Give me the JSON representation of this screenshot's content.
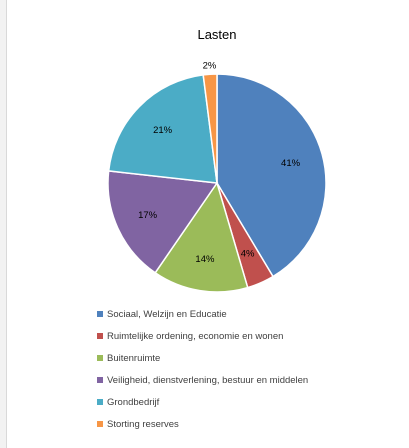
{
  "chart_data": {
    "type": "pie",
    "title": "Lasten",
    "slices": [
      {
        "label": "Sociaal, Welzijn en Educatie",
        "value": 41,
        "display": "41%",
        "color": "#4f81bd"
      },
      {
        "label": "Ruimtelijke ordening, economie en wonen",
        "value": 4,
        "display": "4%",
        "color": "#c0504d"
      },
      {
        "label": "Buitenruimte",
        "value": 14,
        "display": "14%",
        "color": "#9bbb59"
      },
      {
        "label": "Veiligheid, dienstverlening, bestuur en middelen",
        "value": 17,
        "display": "17%",
        "color": "#8064a2"
      },
      {
        "label": "Grondbedrijf",
        "value": 21,
        "display": "21%",
        "color": "#4bacc6"
      },
      {
        "label": "Storting reserves",
        "value": 2,
        "display": "2%",
        "color": "#f79646"
      }
    ],
    "legend_position": "bottom"
  }
}
